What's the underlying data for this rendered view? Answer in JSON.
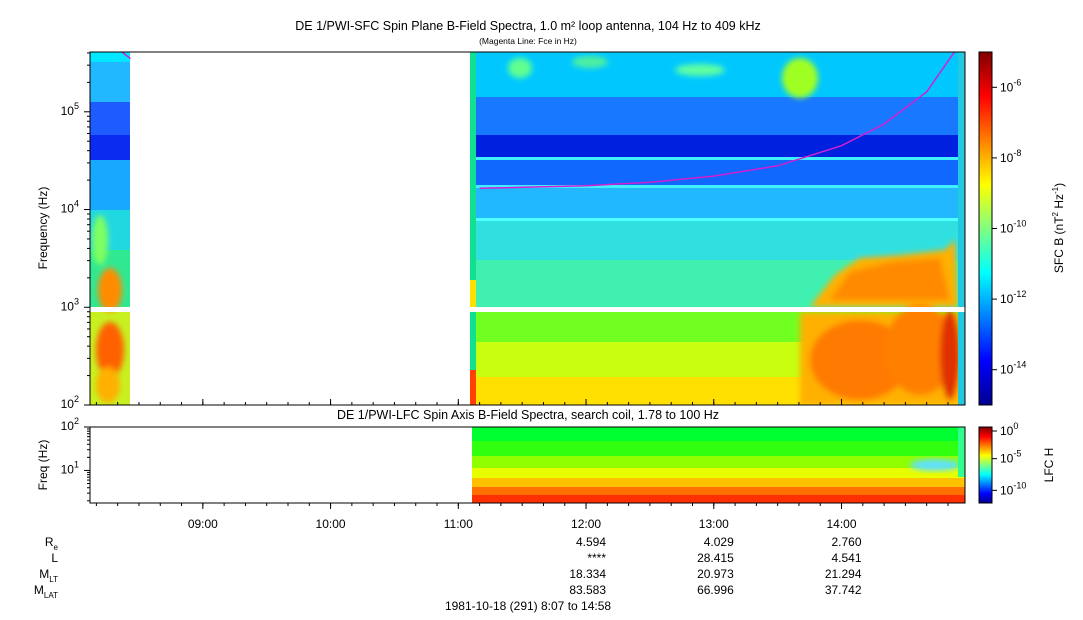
{
  "chart_data": [
    {
      "type": "heatmap",
      "title": "DE 1/PWI-SFC  Spin Plane B-Field Spectra, 1.0 m² loop antenna, 104 Hz to 409 kHz",
      "subtitle": "(Magenta Line: Fce in Hz)",
      "ylabel": "Frequency (Hz)",
      "yscale": "log",
      "ylim": [
        100,
        409000
      ],
      "y_ticks": [
        {
          "base": "10",
          "exp": "2"
        },
        {
          "base": "10",
          "exp": "3"
        },
        {
          "base": "10",
          "exp": "4"
        },
        {
          "base": "10",
          "exp": "5"
        }
      ],
      "colorbar": {
        "label_main": "SFC B (nT",
        "label_sup1": "2",
        "label_mid": " Hz",
        "label_sup2": "-1",
        "label_end": ")",
        "scale": "log",
        "range": [
          1e-15,
          1e-05
        ],
        "ticks": [
          {
            "base": "10",
            "exp": "-6"
          },
          {
            "base": "10",
            "exp": "-8"
          },
          {
            "base": "10",
            "exp": "-10"
          },
          {
            "base": "10",
            "exp": "-12"
          },
          {
            "base": "10",
            "exp": "-14"
          }
        ]
      },
      "data_coverage": [
        {
          "start": "08:07",
          "end": "08:25"
        },
        {
          "start": "11:05",
          "end": "14:58"
        }
      ],
      "fce_line": {
        "color": "#d020d0",
        "points": [
          [
            "08:22",
            409000
          ],
          [
            "08:26",
            350000
          ],
          [
            "11:10",
            16500
          ],
          [
            "12:00",
            17500
          ],
          [
            "12:30",
            19000
          ],
          [
            "13:00",
            22000
          ],
          [
            "13:30",
            28000
          ],
          [
            "14:00",
            45000
          ],
          [
            "14:20",
            75000
          ],
          [
            "14:40",
            160000
          ],
          [
            "14:53",
            409000
          ]
        ]
      }
    },
    {
      "type": "heatmap",
      "title": "DE 1/PWI-LFC  Spin Axis B-Field Spectra, search coil, 1.78 to 100 Hz",
      "ylabel": "Freq (Hz)",
      "yscale": "log",
      "ylim": [
        1.78,
        100
      ],
      "y_ticks": [
        {
          "base": "10",
          "exp": "2"
        },
        {
          "base": "10",
          "exp": "1"
        }
      ],
      "colorbar": {
        "label": "LFC H",
        "scale": "log",
        "range": [
          1e-12,
          1
        ],
        "ticks": [
          {
            "base": "10",
            "exp": "0"
          },
          {
            "base": "10",
            "exp": "-5"
          },
          {
            "base": "10",
            "exp": "-10"
          }
        ]
      },
      "data_coverage": [
        {
          "start": "11:05",
          "end": "14:58"
        }
      ]
    }
  ],
  "x_axis": {
    "range": [
      "08:07",
      "14:58"
    ],
    "ticks": [
      "09:00",
      "10:00",
      "11:00",
      "12:00",
      "13:00",
      "14:00"
    ],
    "label": "1981-10-18 (291) 8:07 to 14:58"
  },
  "ephemeris": {
    "columns": [
      "12:00",
      "13:00",
      "14:00"
    ],
    "rows": [
      {
        "label": "R",
        "sub": "e",
        "values": [
          "4.594",
          "4.029",
          "2.760"
        ]
      },
      {
        "label": "L",
        "sub": "",
        "values": [
          "****",
          "28.415",
          "4.541"
        ]
      },
      {
        "label": "M",
        "sub": "LT",
        "values": [
          "18.334",
          "20.973",
          "21.294"
        ]
      },
      {
        "label": "M",
        "sub": "LAT",
        "values": [
          "83.583",
          "66.996",
          "37.742"
        ]
      }
    ]
  }
}
